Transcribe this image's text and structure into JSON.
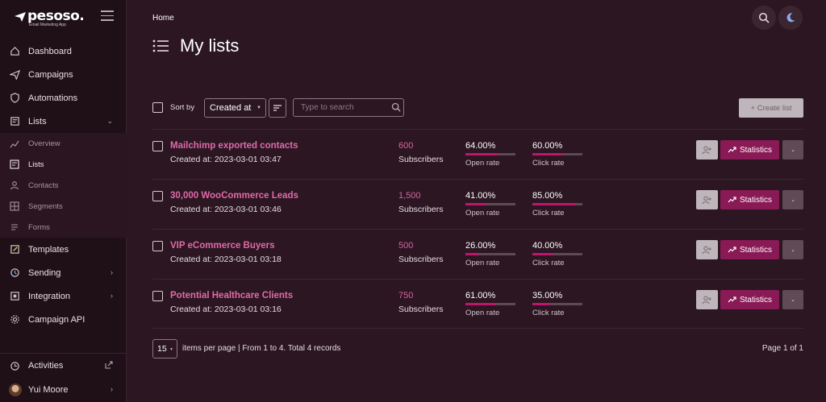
{
  "brand": {
    "name": "pesoso.",
    "tagline": "Email Marketing App"
  },
  "sidebar": {
    "items": [
      {
        "label": "Dashboard",
        "icon": "home-icon"
      },
      {
        "label": "Campaigns",
        "icon": "send-icon"
      },
      {
        "label": "Automations",
        "icon": "shield-icon"
      },
      {
        "label": "Lists",
        "icon": "list-icon"
      }
    ],
    "lists_sub": [
      {
        "label": "Overview",
        "icon": "chart-icon"
      },
      {
        "label": "Lists",
        "icon": "list-icon"
      },
      {
        "label": "Contacts",
        "icon": "user-icon"
      },
      {
        "label": "Segments",
        "icon": "segment-icon"
      },
      {
        "label": "Forms",
        "icon": "form-icon"
      }
    ],
    "items_after": [
      {
        "label": "Templates",
        "icon": "edit-icon"
      },
      {
        "label": "Sending",
        "icon": "sync-icon"
      },
      {
        "label": "Integration",
        "icon": "plug-icon"
      },
      {
        "label": "Campaign API",
        "icon": "gear-icon"
      }
    ],
    "bottom": {
      "activities": "Activities",
      "user": "Yui Moore"
    }
  },
  "header": {
    "breadcrumb": "Home",
    "title": "My lists"
  },
  "toolbar": {
    "sort_label": "Sort by",
    "sort_value": "Created at",
    "search_placeholder": "Type to search",
    "create_label": "+ Create list"
  },
  "lists": [
    {
      "name": "Mailchimp exported contacts",
      "created": "Created at: 2023-03-01 03:47",
      "subscribers": "600",
      "subscribers_label": "Subscribers",
      "open_rate": "64.00%",
      "open_frac": 0.64,
      "open_label": "Open rate",
      "click_rate": "60.00%",
      "click_frac": 0.6,
      "click_label": "Click rate",
      "stats_label": "Statistics"
    },
    {
      "name": "30,000 WooCommerce Leads",
      "created": "Created at: 2023-03-01 03:46",
      "subscribers": "1,500",
      "subscribers_label": "Subscribers",
      "open_rate": "41.00%",
      "open_frac": 0.41,
      "open_label": "Open rate",
      "click_rate": "85.00%",
      "click_frac": 0.85,
      "click_label": "Click rate",
      "stats_label": "Statistics"
    },
    {
      "name": "VIP eCommerce Buyers",
      "created": "Created at: 2023-03-01 03:18",
      "subscribers": "500",
      "subscribers_label": "Subscribers",
      "open_rate": "26.00%",
      "open_frac": 0.26,
      "open_label": "Open rate",
      "click_rate": "40.00%",
      "click_frac": 0.4,
      "click_label": "Click rate",
      "stats_label": "Statistics"
    },
    {
      "name": "Potential Healthcare Clients",
      "created": "Created at: 2023-03-01 03:16",
      "subscribers": "750",
      "subscribers_label": "Subscribers",
      "open_rate": "61.00%",
      "open_frac": 0.61,
      "open_label": "Open rate",
      "click_rate": "35.00%",
      "click_frac": 0.35,
      "click_label": "Click rate",
      "stats_label": "Statistics"
    }
  ],
  "pager": {
    "per_page": "15",
    "per_page_label": "items per page",
    "summary": "| From 1 to 4. Total 4 records",
    "page": "Page 1 of 1"
  },
  "colors": {
    "accent": "#c0156c",
    "link": "#e06aa8",
    "background": "#2b1622",
    "sidebar": "#1f1018"
  }
}
